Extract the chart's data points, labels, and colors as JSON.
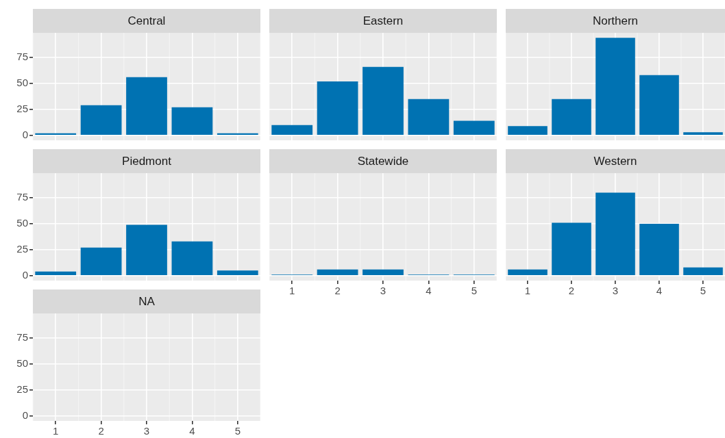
{
  "chart_data": [
    {
      "type": "bar",
      "title": "Central",
      "categories": [
        "1",
        "2",
        "3",
        "4",
        "5"
      ],
      "values": [
        2,
        29,
        56,
        27,
        2
      ],
      "color": "#0072b2",
      "ylim": [
        -4.7,
        98.7
      ],
      "yticks": [
        0,
        25,
        50,
        75
      ],
      "grid": true,
      "tick_labels": "y"
    },
    {
      "type": "bar",
      "title": "Eastern",
      "categories": [
        "1",
        "2",
        "3",
        "4",
        "5"
      ],
      "values": [
        10,
        52,
        66,
        35,
        14
      ],
      "color": "#0072b2",
      "ylim": [
        -4.7,
        98.7
      ],
      "yticks": [
        0,
        25,
        50,
        75
      ],
      "grid": true,
      "tick_labels": false
    },
    {
      "type": "bar",
      "title": "Northern",
      "categories": [
        "1",
        "2",
        "3",
        "4",
        "5"
      ],
      "values": [
        9,
        35,
        94,
        58,
        3
      ],
      "color": "#0072b2",
      "ylim": [
        -4.7,
        98.7
      ],
      "yticks": [
        0,
        25,
        50,
        75
      ],
      "grid": true,
      "tick_labels": false
    },
    {
      "type": "bar",
      "title": "Piedmont",
      "categories": [
        "1",
        "2",
        "3",
        "4",
        "5"
      ],
      "values": [
        4,
        27,
        49,
        33,
        5
      ],
      "color": "#0072b2",
      "ylim": [
        -4.7,
        98.7
      ],
      "yticks": [
        0,
        25,
        50,
        75
      ],
      "grid": true,
      "tick_labels": "y"
    },
    {
      "type": "bar",
      "title": "Statewide",
      "categories": [
        "1",
        "2",
        "3",
        "4",
        "5"
      ],
      "values": [
        1,
        6,
        6,
        1,
        1
      ],
      "color": "#0072b2",
      "ylim": [
        -4.7,
        98.7
      ],
      "yticks": [
        0,
        25,
        50,
        75
      ],
      "grid": true,
      "tick_labels": "x"
    },
    {
      "type": "bar",
      "title": "Western",
      "categories": [
        "1",
        "2",
        "3",
        "4",
        "5"
      ],
      "values": [
        6,
        51,
        80,
        50,
        8
      ],
      "color": "#0072b2",
      "ylim": [
        -4.7,
        98.7
      ],
      "yticks": [
        0,
        25,
        50,
        75
      ],
      "grid": true,
      "tick_labels": "x"
    },
    {
      "type": "bar",
      "title": "NA",
      "categories": [
        "1",
        "2",
        "3",
        "4",
        "5"
      ],
      "values": [
        null,
        null,
        null,
        null,
        null
      ],
      "color": "#0072b2",
      "ylim": [
        -4.7,
        98.7
      ],
      "yticks": [
        0,
        25,
        50,
        75
      ],
      "grid": true
    }
  ]
}
